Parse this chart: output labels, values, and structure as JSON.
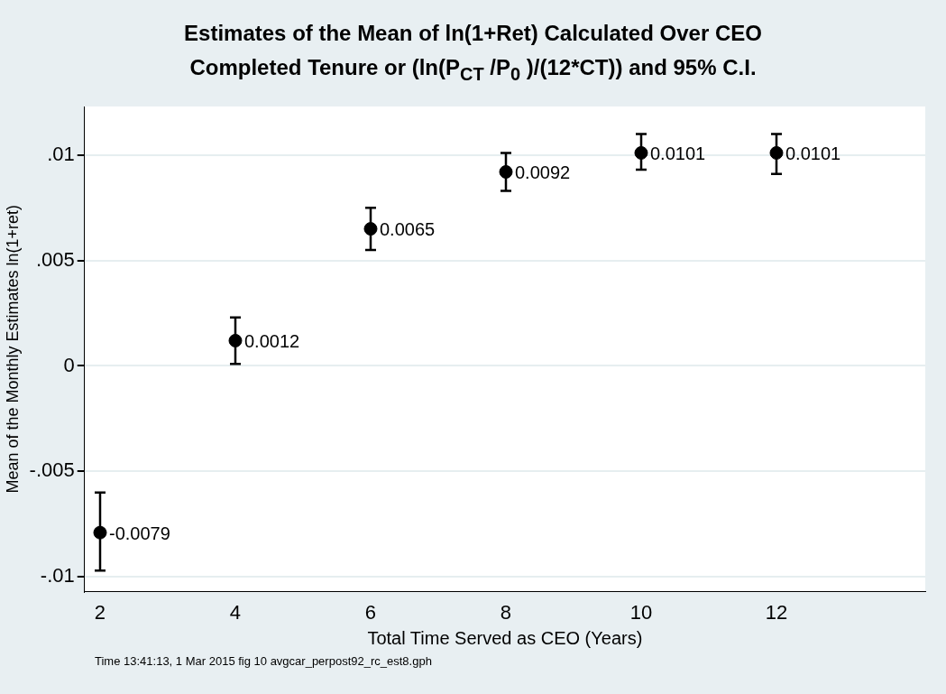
{
  "chart_data": {
    "type": "scatter",
    "title": "Estimates of  the Mean of ln(1+Ret) Calculated Over CEO Completed Tenure or (ln(P$_{CT}$ /P$_{0}$ )/(12*CT)) and 95% C.I.",
    "xlabel": "Total Time Served as CEO (Years)",
    "ylabel": "Mean of the Monthly Estimates ln(1+ret)",
    "annotations": [
      "Time 13:41:13,  1 Mar 2015 fig 10 avgcar_perpost92_rc_est8.gph"
    ],
    "x": [
      2,
      4,
      6,
      8,
      10,
      12
    ],
    "series": [
      {
        "color": "#000000",
        "values": [
          -0.0079,
          0.0012,
          0.0065,
          0.0092,
          0.0101,
          0.0101
        ],
        "errors": [
          [
            -0.0097,
            -0.006
          ],
          [
            0.0001,
            0.0023
          ],
          [
            0.0055,
            0.0075
          ],
          [
            0.0083,
            0.0101
          ],
          [
            0.0093,
            0.011
          ],
          [
            0.0091,
            0.011
          ]
        ]
      }
    ],
    "data_labels": true,
    "marker": "circle",
    "grid": "y",
    "legend": false,
    "xlim": [
      1.77,
      14.2
    ],
    "xticks": [
      2,
      4,
      6,
      8,
      10,
      12
    ],
    "ylim": [
      -0.0107,
      0.0123
    ],
    "yticks": [
      {
        "value": -0.01,
        "label": "-.01"
      },
      {
        "value": -0.005,
        "label": "-.005"
      },
      0,
      {
        "value": 0.005,
        "label": ".005"
      },
      {
        "value": 0.01,
        "label": ".01"
      }
    ]
  }
}
